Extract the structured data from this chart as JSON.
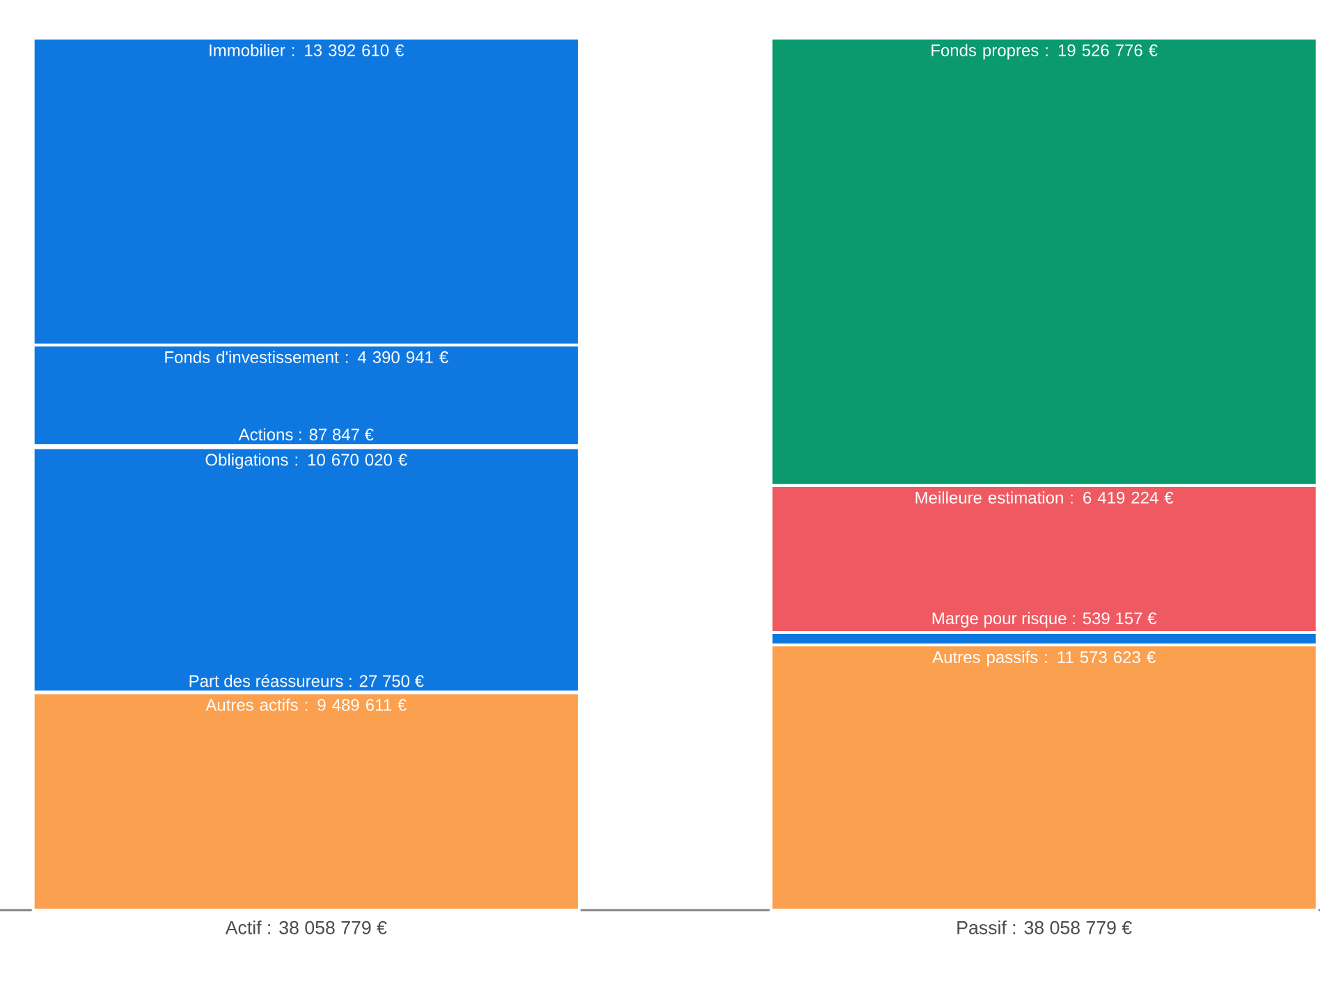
{
  "chart_data": {
    "type": "bar",
    "stacked": true,
    "categories": [
      "Actif : 38 058 779 €",
      "Passif : 38 058 779 €"
    ],
    "series": [
      {
        "color": "#fba04e",
        "values": [
          9489611,
          null
        ],
        "value_labels": [
          "Autres actifs : 9 489 611 €",
          null
        ]
      },
      {
        "color": "#ef5a62",
        "values": [
          27750,
          null
        ],
        "value_labels": [
          "Part des réassureurs : 27 750 €",
          null
        ]
      },
      {
        "color": "#0f78e0",
        "values": [
          10670020,
          null
        ],
        "value_labels": [
          "Obligations : 10 670 020 €",
          null
        ]
      },
      {
        "color": "#0f78e0",
        "values": [
          87847,
          null
        ],
        "value_labels": [
          "Actions : 87 847 €",
          null
        ]
      },
      {
        "color": "#0f78e0",
        "values": [
          4390941,
          null
        ],
        "value_labels": [
          "Fonds d'investissement : 4 390 941 €",
          null
        ]
      },
      {
        "color": "#0f78e0",
        "values": [
          13392610,
          null
        ],
        "value_labels": [
          "Immobilier : 13 392 610 €",
          null
        ]
      },
      {
        "color": "#fba04e",
        "values": [
          null,
          11573623
        ],
        "value_labels": [
          null,
          "Autres passifs : 11 573 623 €"
        ]
      },
      {
        "color": "#0f78e0",
        "values": [
          null,
          539157
        ],
        "value_labels": [
          null,
          "Marge pour risque : 539 157 €"
        ]
      },
      {
        "color": "#ef5a62",
        "values": [
          null,
          6419224
        ],
        "value_labels": [
          null,
          "Meilleure estimation : 6 419 224 €"
        ]
      },
      {
        "color": "#0b9a6e",
        "values": [
          null,
          19526776
        ],
        "value_labels": [
          null,
          "Fonds propres : 19 526 776 €"
        ]
      }
    ]
  }
}
